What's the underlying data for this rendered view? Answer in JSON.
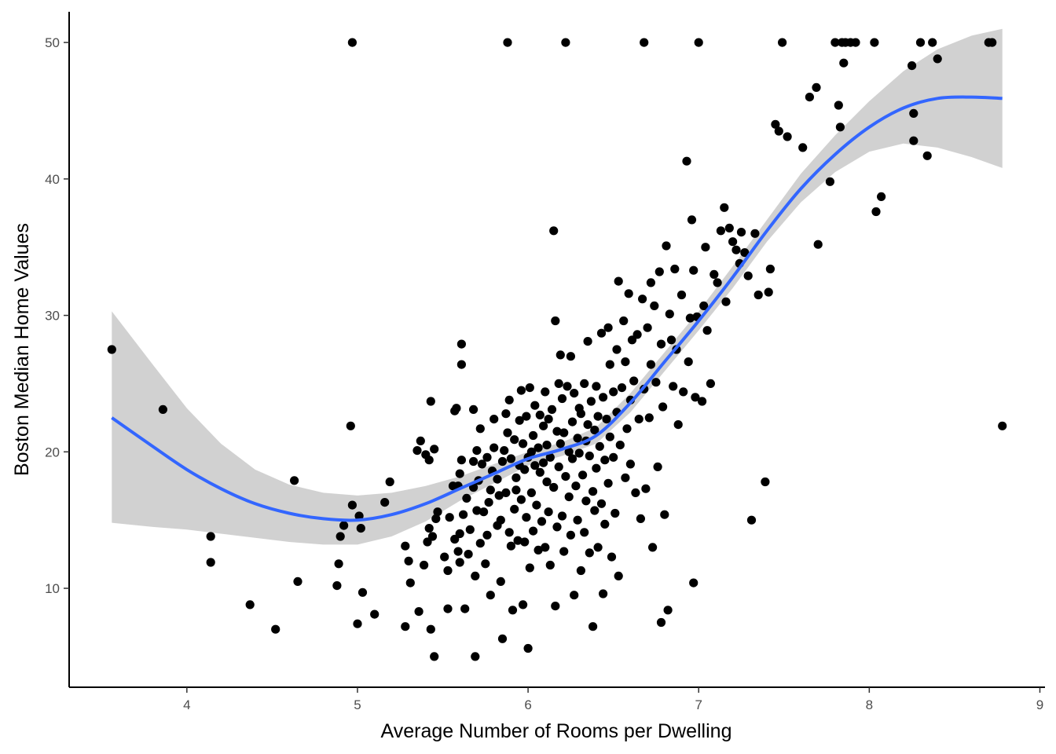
{
  "chart_data": {
    "type": "scatter",
    "title": "",
    "xlabel": "Average Number of Rooms per Dwelling",
    "ylabel": "Boston Median Home Values",
    "xlim": [
      3.31,
      9.03
    ],
    "ylim": [
      2.75,
      52.25
    ],
    "x_ticks": [
      4,
      5,
      6,
      7,
      8,
      9
    ],
    "y_ticks": [
      10,
      20,
      30,
      40,
      50
    ],
    "grid": false,
    "legend": "none",
    "colors": {
      "points": "#000000",
      "smooth_line": "#3366FF",
      "ribbon": "#999999",
      "axis": "#000000"
    },
    "smooth": {
      "x": [
        3.56,
        3.8,
        4.0,
        4.2,
        4.4,
        4.6,
        4.8,
        5.0,
        5.2,
        5.4,
        5.6,
        5.8,
        6.0,
        6.2,
        6.4,
        6.6,
        6.8,
        7.0,
        7.2,
        7.4,
        7.6,
        7.8,
        8.0,
        8.2,
        8.4,
        8.6,
        8.78
      ],
      "y": [
        22.5,
        20.4,
        18.7,
        17.3,
        16.2,
        15.5,
        15.1,
        15.0,
        15.4,
        16.2,
        17.3,
        18.4,
        19.5,
        20.2,
        21.2,
        23.6,
        26.6,
        29.6,
        32.8,
        36.2,
        39.3,
        41.8,
        43.8,
        45.2,
        45.9,
        46.0,
        45.9
      ],
      "lower": [
        14.8,
        14.5,
        14.3,
        14.0,
        13.7,
        13.4,
        13.2,
        13.2,
        13.8,
        14.9,
        16.4,
        17.7,
        19.0,
        19.7,
        20.6,
        22.9,
        25.9,
        28.9,
        32.0,
        35.4,
        38.3,
        40.5,
        42.0,
        42.6,
        42.3,
        41.6,
        40.8
      ],
      "upper": [
        30.3,
        26.4,
        23.2,
        20.6,
        18.7,
        17.6,
        17.0,
        16.8,
        17.0,
        17.5,
        18.2,
        19.1,
        20.0,
        20.7,
        21.8,
        24.3,
        27.3,
        30.3,
        33.6,
        37.0,
        40.4,
        43.2,
        45.7,
        47.9,
        49.5,
        50.5,
        51.0
      ]
    },
    "points": [
      [
        3.56,
        27.5
      ],
      [
        3.86,
        23.1
      ],
      [
        4.14,
        13.8
      ],
      [
        4.14,
        11.9
      ],
      [
        4.37,
        8.8
      ],
      [
        4.52,
        7.0
      ],
      [
        4.63,
        17.9
      ],
      [
        4.65,
        10.5
      ],
      [
        4.88,
        10.2
      ],
      [
        4.89,
        11.8
      ],
      [
        4.9,
        13.8
      ],
      [
        4.92,
        14.6
      ],
      [
        4.96,
        21.9
      ],
      [
        4.97,
        16.1
      ],
      [
        4.97,
        50.0
      ],
      [
        5.0,
        7.4
      ],
      [
        5.01,
        15.3
      ],
      [
        5.02,
        14.4
      ],
      [
        5.03,
        9.7
      ],
      [
        5.1,
        8.1
      ],
      [
        5.16,
        16.3
      ],
      [
        5.19,
        17.8
      ],
      [
        5.28,
        7.2
      ],
      [
        5.28,
        13.1
      ],
      [
        5.3,
        12.0
      ],
      [
        5.31,
        10.4
      ],
      [
        5.35,
        20.1
      ],
      [
        5.36,
        8.3
      ],
      [
        5.37,
        20.8
      ],
      [
        5.39,
        11.7
      ],
      [
        5.4,
        19.8
      ],
      [
        5.41,
        13.4
      ],
      [
        5.42,
        14.4
      ],
      [
        5.42,
        19.4
      ],
      [
        5.43,
        23.7
      ],
      [
        5.43,
        7.0
      ],
      [
        5.44,
        13.8
      ],
      [
        5.45,
        20.2
      ],
      [
        5.45,
        5.0
      ],
      [
        5.46,
        15.1
      ],
      [
        5.47,
        15.6
      ],
      [
        5.51,
        12.3
      ],
      [
        5.53,
        8.5
      ],
      [
        5.53,
        11.3
      ],
      [
        5.54,
        15.2
      ],
      [
        5.56,
        17.5
      ],
      [
        5.57,
        13.6
      ],
      [
        5.57,
        23.0
      ],
      [
        5.58,
        23.2
      ],
      [
        5.59,
        17.5
      ],
      [
        5.59,
        12.7
      ],
      [
        5.6,
        14.0
      ],
      [
        5.6,
        11.9
      ],
      [
        5.6,
        18.4
      ],
      [
        5.61,
        26.4
      ],
      [
        5.61,
        27.9
      ],
      [
        5.61,
        19.4
      ],
      [
        5.62,
        15.4
      ],
      [
        5.63,
        8.5
      ],
      [
        5.64,
        16.6
      ],
      [
        5.65,
        12.5
      ],
      [
        5.66,
        14.3
      ],
      [
        5.68,
        23.1
      ],
      [
        5.68,
        17.4
      ],
      [
        5.68,
        19.3
      ],
      [
        5.69,
        5.0
      ],
      [
        5.69,
        10.9
      ],
      [
        5.7,
        15.7
      ],
      [
        5.7,
        20.1
      ],
      [
        5.71,
        17.9
      ],
      [
        5.72,
        21.7
      ],
      [
        5.72,
        13.3
      ],
      [
        5.73,
        19.1
      ],
      [
        5.74,
        15.6
      ],
      [
        5.75,
        11.8
      ],
      [
        5.76,
        13.9
      ],
      [
        5.76,
        19.6
      ],
      [
        5.77,
        16.3
      ],
      [
        5.78,
        17.2
      ],
      [
        5.78,
        9.5
      ],
      [
        5.79,
        18.6
      ],
      [
        5.8,
        20.3
      ],
      [
        5.8,
        22.4
      ],
      [
        5.82,
        18.0
      ],
      [
        5.82,
        14.6
      ],
      [
        5.83,
        16.8
      ],
      [
        5.84,
        10.5
      ],
      [
        5.84,
        15.0
      ],
      [
        5.85,
        19.3
      ],
      [
        5.85,
        6.3
      ],
      [
        5.86,
        20.1
      ],
      [
        5.87,
        22.8
      ],
      [
        5.87,
        17.0
      ],
      [
        5.88,
        50.0
      ],
      [
        5.88,
        21.4
      ],
      [
        5.89,
        14.1
      ],
      [
        5.89,
        23.8
      ],
      [
        5.9,
        13.1
      ],
      [
        5.9,
        19.5
      ],
      [
        5.91,
        8.4
      ],
      [
        5.92,
        15.8
      ],
      [
        5.92,
        20.9
      ],
      [
        5.93,
        18.1
      ],
      [
        5.93,
        17.2
      ],
      [
        5.94,
        13.5
      ],
      [
        5.95,
        22.3
      ],
      [
        5.95,
        19.0
      ],
      [
        5.96,
        16.5
      ],
      [
        5.96,
        24.5
      ],
      [
        5.97,
        8.8
      ],
      [
        5.97,
        20.6
      ],
      [
        5.98,
        13.4
      ],
      [
        5.98,
        18.7
      ],
      [
        5.99,
        22.6
      ],
      [
        5.99,
        15.2
      ],
      [
        6.0,
        5.6
      ],
      [
        6.0,
        19.6
      ],
      [
        6.01,
        11.5
      ],
      [
        6.01,
        24.7
      ],
      [
        6.02,
        20.0
      ],
      [
        6.02,
        17.0
      ],
      [
        6.03,
        14.2
      ],
      [
        6.03,
        21.2
      ],
      [
        6.04,
        19.0
      ],
      [
        6.04,
        23.4
      ],
      [
        6.05,
        16.1
      ],
      [
        6.06,
        12.8
      ],
      [
        6.06,
        20.3
      ],
      [
        6.07,
        18.5
      ],
      [
        6.07,
        22.7
      ],
      [
        6.08,
        14.9
      ],
      [
        6.09,
        19.2
      ],
      [
        6.09,
        21.9
      ],
      [
        6.1,
        13.0
      ],
      [
        6.1,
        24.4
      ],
      [
        6.11,
        17.8
      ],
      [
        6.11,
        20.5
      ],
      [
        6.12,
        15.6
      ],
      [
        6.12,
        22.4
      ],
      [
        6.13,
        19.6
      ],
      [
        6.13,
        11.7
      ],
      [
        6.14,
        23.1
      ],
      [
        6.15,
        36.2
      ],
      [
        6.15,
        17.4
      ],
      [
        6.16,
        29.6
      ],
      [
        6.16,
        8.7
      ],
      [
        6.17,
        21.5
      ],
      [
        6.17,
        14.5
      ],
      [
        6.18,
        25.0
      ],
      [
        6.18,
        18.9
      ],
      [
        6.19,
        27.1
      ],
      [
        6.19,
        20.6
      ],
      [
        6.2,
        15.3
      ],
      [
        6.2,
        23.9
      ],
      [
        6.21,
        12.7
      ],
      [
        6.21,
        21.4
      ],
      [
        6.22,
        50.0
      ],
      [
        6.22,
        18.2
      ],
      [
        6.23,
        24.8
      ],
      [
        6.24,
        16.7
      ],
      [
        6.24,
        20.0
      ],
      [
        6.25,
        27.0
      ],
      [
        6.25,
        13.9
      ],
      [
        6.26,
        22.2
      ],
      [
        6.26,
        19.5
      ],
      [
        6.27,
        9.5
      ],
      [
        6.27,
        24.3
      ],
      [
        6.28,
        17.5
      ],
      [
        6.29,
        21.0
      ],
      [
        6.29,
        15.0
      ],
      [
        6.3,
        23.2
      ],
      [
        6.3,
        19.9
      ],
      [
        6.31,
        11.3
      ],
      [
        6.31,
        22.8
      ],
      [
        6.32,
        18.3
      ],
      [
        6.33,
        25.0
      ],
      [
        6.33,
        14.1
      ],
      [
        6.34,
        20.8
      ],
      [
        6.34,
        16.4
      ],
      [
        6.35,
        28.1
      ],
      [
        6.35,
        22.0
      ],
      [
        6.36,
        12.6
      ],
      [
        6.36,
        19.7
      ],
      [
        6.37,
        23.7
      ],
      [
        6.38,
        17.1
      ],
      [
        6.38,
        7.2
      ],
      [
        6.39,
        21.6
      ],
      [
        6.39,
        15.7
      ],
      [
        6.4,
        24.8
      ],
      [
        6.4,
        18.8
      ],
      [
        6.41,
        13.0
      ],
      [
        6.41,
        22.6
      ],
      [
        6.42,
        20.4
      ],
      [
        6.43,
        28.7
      ],
      [
        6.43,
        16.2
      ],
      [
        6.44,
        9.6
      ],
      [
        6.44,
        24.0
      ],
      [
        6.45,
        19.4
      ],
      [
        6.45,
        14.7
      ],
      [
        6.46,
        22.4
      ],
      [
        6.47,
        29.1
      ],
      [
        6.47,
        17.7
      ],
      [
        6.48,
        26.4
      ],
      [
        6.48,
        21.1
      ],
      [
        6.49,
        12.3
      ],
      [
        6.5,
        24.4
      ],
      [
        6.5,
        19.6
      ],
      [
        6.51,
        15.5
      ],
      [
        6.52,
        27.5
      ],
      [
        6.52,
        22.9
      ],
      [
        6.53,
        10.9
      ],
      [
        6.53,
        32.5
      ],
      [
        6.54,
        20.5
      ],
      [
        6.55,
        24.7
      ],
      [
        6.56,
        29.6
      ],
      [
        6.57,
        18.1
      ],
      [
        6.57,
        26.6
      ],
      [
        6.58,
        21.7
      ],
      [
        6.59,
        31.6
      ],
      [
        6.6,
        23.8
      ],
      [
        6.6,
        19.1
      ],
      [
        6.61,
        28.2
      ],
      [
        6.62,
        25.2
      ],
      [
        6.63,
        17.0
      ],
      [
        6.64,
        28.6
      ],
      [
        6.65,
        22.4
      ],
      [
        6.66,
        15.1
      ],
      [
        6.67,
        31.2
      ],
      [
        6.68,
        50.0
      ],
      [
        6.68,
        24.6
      ],
      [
        6.69,
        17.3
      ],
      [
        6.7,
        29.1
      ],
      [
        6.71,
        22.5
      ],
      [
        6.72,
        26.4
      ],
      [
        6.72,
        32.4
      ],
      [
        6.73,
        13.0
      ],
      [
        6.74,
        30.7
      ],
      [
        6.75,
        25.1
      ],
      [
        6.76,
        18.9
      ],
      [
        6.77,
        33.2
      ],
      [
        6.78,
        7.5
      ],
      [
        6.78,
        27.9
      ],
      [
        6.79,
        23.3
      ],
      [
        6.8,
        15.4
      ],
      [
        6.81,
        35.1
      ],
      [
        6.82,
        8.4
      ],
      [
        6.83,
        30.1
      ],
      [
        6.84,
        28.2
      ],
      [
        6.85,
        24.8
      ],
      [
        6.86,
        33.4
      ],
      [
        6.87,
        27.5
      ],
      [
        6.88,
        22.0
      ],
      [
        6.9,
        31.5
      ],
      [
        6.91,
        24.4
      ],
      [
        6.93,
        41.3
      ],
      [
        6.94,
        26.6
      ],
      [
        6.95,
        29.8
      ],
      [
        6.96,
        37.0
      ],
      [
        6.97,
        10.4
      ],
      [
        6.97,
        33.3
      ],
      [
        6.98,
        24.0
      ],
      [
        6.99,
        29.9
      ],
      [
        7.0,
        50.0
      ],
      [
        7.02,
        23.7
      ],
      [
        7.03,
        30.7
      ],
      [
        7.04,
        35.0
      ],
      [
        7.05,
        28.9
      ],
      [
        7.07,
        25.0
      ],
      [
        7.09,
        33.0
      ],
      [
        7.11,
        32.4
      ],
      [
        7.13,
        36.2
      ],
      [
        7.15,
        37.9
      ],
      [
        7.16,
        31.0
      ],
      [
        7.18,
        36.4
      ],
      [
        7.2,
        35.4
      ],
      [
        7.22,
        34.8
      ],
      [
        7.24,
        33.8
      ],
      [
        7.25,
        36.1
      ],
      [
        7.27,
        34.6
      ],
      [
        7.29,
        32.9
      ],
      [
        7.31,
        15.0
      ],
      [
        7.33,
        36.0
      ],
      [
        7.35,
        31.5
      ],
      [
        7.39,
        17.8
      ],
      [
        7.41,
        31.7
      ],
      [
        7.42,
        33.4
      ],
      [
        7.45,
        44.0
      ],
      [
        7.47,
        43.5
      ],
      [
        7.49,
        50.0
      ],
      [
        7.52,
        43.1
      ],
      [
        7.61,
        42.3
      ],
      [
        7.65,
        46.0
      ],
      [
        7.69,
        46.7
      ],
      [
        7.7,
        35.2
      ],
      [
        7.77,
        39.8
      ],
      [
        7.8,
        50.0
      ],
      [
        7.82,
        45.4
      ],
      [
        7.83,
        43.8
      ],
      [
        7.84,
        50.0
      ],
      [
        7.85,
        48.5
      ],
      [
        7.86,
        50.0
      ],
      [
        7.89,
        50.0
      ],
      [
        7.92,
        50.0
      ],
      [
        8.03,
        50.0
      ],
      [
        8.04,
        37.6
      ],
      [
        8.07,
        38.7
      ],
      [
        8.25,
        48.3
      ],
      [
        8.26,
        44.8
      ],
      [
        8.26,
        42.8
      ],
      [
        8.3,
        50.0
      ],
      [
        8.34,
        41.7
      ],
      [
        8.37,
        50.0
      ],
      [
        8.4,
        48.8
      ],
      [
        8.7,
        50.0
      ],
      [
        8.72,
        50.0
      ],
      [
        8.78,
        21.9
      ]
    ]
  }
}
